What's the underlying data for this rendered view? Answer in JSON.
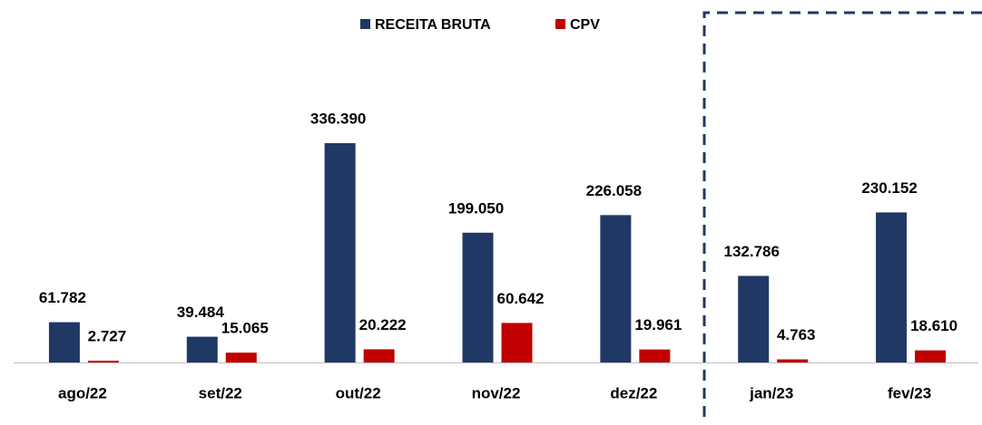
{
  "chart_data": {
    "type": "bar",
    "categories": [
      "ago/22",
      "set/22",
      "out/22",
      "nov/22",
      "dez/22",
      "jan/23",
      "fev/23"
    ],
    "series": [
      {
        "name": "RECEITA BRUTA",
        "color": "#203864",
        "values": [
          61782,
          39484,
          336390,
          199050,
          226058,
          132786,
          230152
        ],
        "value_labels": [
          "61.782",
          "39.484",
          "336.390",
          "199.050",
          "226.058",
          "132.786",
          "230.152"
        ]
      },
      {
        "name": "CPV",
        "color": "#c00000",
        "values": [
          2727,
          15065,
          20222,
          60642,
          19961,
          4763,
          18610
        ],
        "value_labels": [
          "2.727",
          "15.065",
          "20.222",
          "60.642",
          "19.961",
          "4.763",
          "18.610"
        ]
      }
    ]
  }
}
